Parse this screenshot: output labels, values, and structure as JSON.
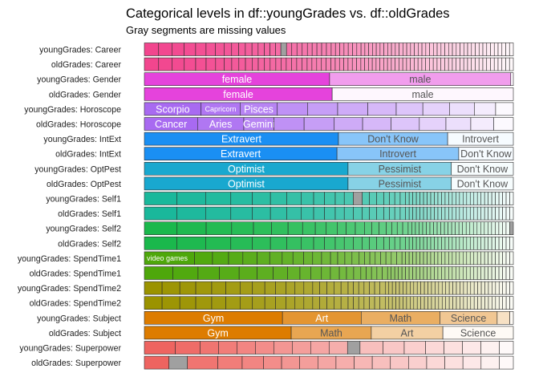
{
  "chart_data": {
    "type": "bar",
    "title": "Categorical levels in df::youngGrades vs. df::oldGrades",
    "subtitle": "Gray segments are missing values",
    "xlabel": "",
    "ylabel": "",
    "grid": false,
    "legend": "none",
    "missing_color": "#a0a0a0",
    "rows": [
      {
        "label": "youngGrades: Career",
        "color": "#f2468e",
        "segments": [
          0.0344,
          0.0321,
          0.0298,
          0.0275,
          0.0252,
          0.0229,
          0.0206,
          0.0183,
          0.0172,
          0.016,
          0.016,
          0.0149,
          0.0149,
          0.0137,
          0.0137,
          0.0126,
          {
            "value": 0.0137,
            "missing": true
          },
          0.0126,
          0.0126,
          0.0126,
          0.0126,
          0.0115,
          0.0115,
          0.0115,
          0.0115,
          0.0115,
          0.0103,
          0.0103,
          0.0103,
          0.0103,
          0.0103,
          0.0103,
          0.0103,
          0.0092,
          0.0092,
          0.0092,
          0.0092,
          0.0092,
          0.0092,
          0.0092,
          0.0092,
          0.0092,
          0.0092,
          0.0092,
          0.0092,
          0.0092,
          0.0092,
          0.0092,
          0.0092,
          0.0092,
          0.0092,
          0.0092,
          0.0092,
          0.0092,
          0.0092,
          0.0092,
          0.0092,
          0.0092,
          0.0092,
          0.0092,
          0.0092,
          0.0092,
          0.0092,
          0.0092,
          0.0092,
          0.0092,
          0.0092,
          0.0092,
          0.0092,
          0.0092,
          0.0092,
          0.0092,
          0.0092
        ]
      },
      {
        "label": "oldGrades: Career",
        "color": "#f2468e",
        "segments": [
          0.0344,
          0.0321,
          0.0298,
          0.0275,
          0.0252,
          0.0229,
          0.0206,
          0.0183,
          0.0172,
          0.016,
          0.016,
          0.0149,
          0.0149,
          0.0137,
          0.0137,
          0.0126,
          0.0126,
          0.0126,
          0.0126,
          0.0126,
          0.0126,
          0.0115,
          0.0115,
          0.0115,
          0.0115,
          0.0115,
          0.0103,
          0.0103,
          0.0103,
          0.0103,
          0.0103,
          0.0103,
          0.0103,
          0.0092,
          0.0092,
          0.0092,
          0.0092,
          0.0092,
          0.0092,
          0.0092,
          0.0092,
          0.0092,
          0.0092,
          0.0092,
          0.0092,
          0.0092,
          0.0092,
          0.0092,
          0.0092,
          0.0092,
          0.0092,
          0.0092,
          0.0092,
          0.0092,
          0.0092,
          0.0092,
          0.0092,
          0.0092,
          0.0092,
          0.0092,
          0.0092,
          0.0092,
          0.0092,
          0.0092,
          0.0092,
          0.0092,
          0.0092,
          0.0092,
          0.0092,
          0.0092,
          0.0092,
          0.0092,
          0.0092
        ]
      },
      {
        "label": "youngGrades: Gender",
        "color": "#e543dc",
        "segments": [
          {
            "value": 0.502,
            "text": "female"
          },
          {
            "value": 0.491,
            "text": "male"
          },
          0.007
        ]
      },
      {
        "label": "oldGrades: Gender",
        "color": "#e543dc",
        "segments": [
          {
            "value": 0.509,
            "text": "female"
          },
          {
            "value": 0.491,
            "text": "male"
          }
        ]
      },
      {
        "label": "youngGrades: Horoscope",
        "color": "#a86af1",
        "segments": [
          {
            "value": 0.163,
            "text": "Scorpio"
          },
          {
            "value": 0.112,
            "text": "Capricorn",
            "small": true
          },
          {
            "value": 0.107,
            "text": "Pisces"
          },
          0.0867,
          0.0867,
          0.0867,
          0.0816,
          0.0765,
          0.0765,
          0.0714,
          0.0612,
          0.0509
        ]
      },
      {
        "label": "oldGrades: Horoscope",
        "color": "#a86af1",
        "segments": [
          {
            "value": 0.153,
            "text": "Cancer"
          },
          {
            "value": 0.133,
            "text": "Aries"
          },
          {
            "value": 0.0867,
            "text": "Gemini"
          },
          0.0867,
          0.0867,
          0.0816,
          0.0816,
          0.0816,
          0.0765,
          0.0714,
          0.0663,
          0.0561
        ]
      },
      {
        "label": "youngGrades: IntExt",
        "color": "#1a8ff3",
        "segments": [
          {
            "value": 0.526,
            "text": "Extravert"
          },
          {
            "value": 0.296,
            "text": "Don't Know"
          },
          {
            "value": 0.178,
            "text": "Introvert"
          }
        ]
      },
      {
        "label": "oldGrades: IntExt",
        "color": "#1a8ff3",
        "segments": [
          {
            "value": 0.522,
            "text": "Extravert"
          },
          {
            "value": 0.33,
            "text": "Introvert"
          },
          {
            "value": 0.148,
            "text": "Don't Know"
          }
        ]
      },
      {
        "label": "youngGrades: OptPest",
        "color": "#19a8cf",
        "segments": [
          {
            "value": 0.552,
            "text": "Optimist"
          },
          {
            "value": 0.28,
            "text": "Pessimist"
          },
          {
            "value": 0.168,
            "text": "Don't Know"
          }
        ]
      },
      {
        "label": "oldGrades: OptPest",
        "color": "#19a8cf",
        "segments": [
          {
            "value": 0.552,
            "text": "Optimist"
          },
          {
            "value": 0.28,
            "text": "Pessimist"
          },
          {
            "value": 0.168,
            "text": "Don't Know"
          }
        ]
      },
      {
        "label": "youngGrades: Self1",
        "color": "#1ab89b",
        "segments": [
          0.101,
          0.0899,
          0.0787,
          0.0674,
          0.0562,
          0.0506,
          0.0449,
          0.0393,
          0.0337,
          0.0337,
          0.0281,
          0.0281,
          {
            "value": 0.0281,
            "missing": true
          },
          0.0225,
          0.0225,
          0.0225,
          0.0169,
          0.0169,
          0.0169,
          0.0169,
          0.0112,
          0.0112,
          0.0112,
          0.0112,
          0.0112,
          0.0112,
          0.0112,
          0.0112,
          0.0112,
          0.0112,
          0.0112,
          0.0112,
          0.0112,
          0.0112,
          0.0112,
          0.0112,
          0.0112,
          0.0112,
          0.0112,
          0.0112,
          0.0112,
          0.0112,
          0.0112,
          0.0112,
          0.0112,
          0.0112,
          0.0112,
          0.0112,
          0.0112,
          0.0112
        ]
      },
      {
        "label": "oldGrades: Self1",
        "color": "#1ab89b",
        "segments": [
          0.101,
          0.0899,
          0.0787,
          0.0674,
          0.0562,
          0.0506,
          0.0449,
          0.0393,
          0.0337,
          0.0337,
          0.0281,
          0.0281,
          0.0281,
          0.0225,
          0.0225,
          0.0225,
          0.0169,
          0.0169,
          0.0169,
          0.0169,
          0.0112,
          0.0112,
          0.0112,
          0.0112,
          0.0112,
          0.0112,
          0.0112,
          0.0112,
          0.0112,
          0.0112,
          0.0112,
          0.0112,
          0.0112,
          0.0112,
          0.0112,
          0.0112,
          0.0112,
          0.0112,
          0.0112,
          0.0112,
          0.0112,
          0.0112,
          0.0112,
          0.0112,
          0.0112,
          0.0112,
          0.0112,
          0.0112,
          0.0112,
          0.0112
        ]
      },
      {
        "label": "youngGrades: Self2",
        "color": "#1ab84c",
        "segments": [
          0.101,
          0.0899,
          0.0787,
          0.0674,
          0.0562,
          0.0506,
          0.0449,
          0.0393,
          0.0337,
          0.0337,
          0.0281,
          0.0281,
          0.0281,
          0.0225,
          0.0225,
          0.0225,
          0.0169,
          0.0169,
          0.0169,
          0.0169,
          0.0112,
          0.0112,
          0.0112,
          0.0112,
          0.0112,
          0.0112,
          0.0112,
          0.0112,
          0.0112,
          0.0112,
          0.0112,
          0.0112,
          0.0112,
          0.0112,
          0.0112,
          0.0112,
          0.0112,
          0.0112,
          0.0112,
          0.0112,
          0.0112,
          0.0112,
          0.0112,
          0.0112,
          0.0112,
          0.0112,
          0.0112,
          0.0112,
          {
            "value": 0.0112,
            "missing": true
          }
        ]
      },
      {
        "label": "oldGrades: Self2",
        "color": "#1ab84c",
        "segments": [
          0.101,
          0.0899,
          0.0787,
          0.0674,
          0.0562,
          0.0506,
          0.0449,
          0.0393,
          0.0337,
          0.0337,
          0.0281,
          0.0281,
          0.0281,
          0.0225,
          0.0225,
          0.0225,
          0.0169,
          0.0169,
          0.0169,
          0.0169,
          0.0112,
          0.0112,
          0.0112,
          0.0112,
          0.0112,
          0.0112,
          0.0112,
          0.0112,
          0.0112,
          0.0112,
          0.0112,
          0.0112,
          0.0112,
          0.0112,
          0.0112,
          0.0112,
          0.0112,
          0.0112,
          0.0112,
          0.0112,
          0.0112,
          0.0112,
          0.0112,
          0.0112,
          0.0112,
          0.0112,
          0.0112,
          0.0112,
          0.0112,
          0.0112
        ]
      },
      {
        "label": "youngGrades: SpendTime1",
        "color": "#4ea70b",
        "segments": [
          {
            "value": 0.151,
            "text": "video games",
            "small": true
          },
          0.0538,
          0.0484,
          0.043,
          0.043,
          0.0376,
          0.0376,
          0.0323,
          0.0323,
          0.0269,
          0.0269,
          0.0269,
          0.0215,
          0.0215,
          0.0215,
          0.0215,
          0.0161,
          0.0161,
          0.0161,
          0.0161,
          0.0161,
          0.0161,
          0.0161,
          0.0161,
          0.0108,
          0.0108,
          0.0108,
          0.0108,
          0.0108,
          0.0108,
          0.0108,
          0.0108,
          0.0108,
          0.0108,
          0.0108,
          0.0108,
          0.0108,
          0.0108,
          0.0108,
          0.0108,
          0.0108,
          0.0108,
          0.0108,
          0.0108,
          0.0108,
          0.0108,
          0.0108,
          0.0108,
          0.0108,
          0.0108,
          0.0108,
          0.0108,
          0.0108,
          0.0108,
          0.0108
        ]
      },
      {
        "label": "oldGrades: SpendTime1",
        "color": "#4ea70b",
        "segments": [
          0.086,
          0.0753,
          0.0645,
          0.0591,
          0.0538,
          0.0484,
          0.043,
          0.0376,
          0.0323,
          0.0323,
          0.0269,
          0.0269,
          0.0215,
          0.0215,
          0.0215,
          0.0161,
          0.0161,
          0.0161,
          0.0161,
          0.0161,
          0.0108,
          0.0108,
          0.0108,
          0.0108,
          0.0108,
          0.0108,
          0.0108,
          0.0108,
          0.0108,
          0.0108,
          0.0108,
          0.0108,
          0.0108,
          0.0108,
          0.0108,
          0.0108,
          0.0108,
          0.0108,
          0.0108,
          0.0108,
          0.0108,
          0.0108,
          0.0108,
          0.0108,
          0.0108,
          0.0108,
          0.0108,
          0.0108,
          0.0108,
          0.0108,
          0.0108,
          0.0108,
          0.0108,
          0.0108,
          0.0108
        ]
      },
      {
        "label": "youngGrades: SpendTime2",
        "color": "#9b9300",
        "segments": [
          0.0538,
          0.0538,
          0.0484,
          0.0484,
          0.043,
          0.043,
          0.0376,
          0.0376,
          0.0323,
          0.0323,
          0.0269,
          0.0269,
          0.0269,
          0.0215,
          0.0215,
          0.0215,
          0.0215,
          0.0215,
          0.0161,
          0.0161,
          0.0161,
          0.0161,
          0.0161,
          0.0161,
          0.0161,
          0.0108,
          0.0108,
          0.0108,
          0.0108,
          0.0108,
          0.0108,
          0.0108,
          0.0108,
          0.0108,
          0.0108,
          0.0108,
          0.0108,
          0.0108,
          0.0108,
          0.0108,
          0.0108,
          0.0108,
          0.0108,
          0.0108,
          0.0108,
          0.0108,
          0.0108,
          0.0108,
          0.0108,
          0.0108,
          0.0108,
          0.0108,
          0.0108,
          0.0108,
          0.0108,
          0.0108,
          0.0108,
          0.0108,
          0.0108,
          0.0108,
          0.0108
        ]
      },
      {
        "label": "oldGrades: SpendTime2",
        "color": "#9b9300",
        "segments": [
          0.0538,
          0.0538,
          0.0484,
          0.0484,
          0.043,
          0.043,
          0.0376,
          0.0376,
          0.0323,
          0.0323,
          0.0269,
          0.0269,
          0.0269,
          0.0215,
          0.0215,
          0.0215,
          0.0215,
          0.0215,
          0.0161,
          0.0161,
          0.0161,
          0.0161,
          0.0161,
          0.0161,
          0.0161,
          0.0108,
          0.0108,
          0.0108,
          0.0108,
          0.0108,
          0.0108,
          0.0108,
          0.0108,
          0.0108,
          0.0108,
          0.0108,
          0.0108,
          0.0108,
          0.0108,
          0.0108,
          0.0108,
          0.0108,
          0.0108,
          0.0108,
          0.0108,
          0.0108,
          0.0108,
          0.0108,
          0.0108,
          0.0108,
          0.0108,
          0.0108,
          0.0108,
          0.0108,
          0.0108,
          0.0108,
          0.0108,
          0.0108,
          0.0108,
          0.0108,
          0.0108
        ]
      },
      {
        "label": "youngGrades: Subject",
        "color": "#dd7c00",
        "segments": [
          {
            "value": 0.393,
            "text": "Gym"
          },
          {
            "value": 0.224,
            "text": "Art"
          },
          {
            "value": 0.224,
            "text": "Math"
          },
          {
            "value": 0.163,
            "text": "Science"
          },
          {
            "value": 0.036
          },
          {
            "value": 0.01
          }
        ]
      },
      {
        "label": "oldGrades: Subject",
        "color": "#dd7c00",
        "segments": [
          {
            "value": 0.398,
            "text": "Gym"
          },
          {
            "value": 0.217,
            "text": "Math"
          },
          {
            "value": 0.194,
            "text": "Art"
          },
          {
            "value": 0.191,
            "text": "Science"
          }
        ]
      },
      {
        "label": "youngGrades: Superpower",
        "color": "#ee6460",
        "segments": [
          0.087,
          0.07,
          0.052,
          0.052,
          0.052,
          0.052,
          0.052,
          0.052,
          0.052,
          0.052,
          {
            "value": 0.0353,
            "missing": true
          },
          0.0647,
          0.06,
          0.06,
          0.052,
          0.052,
          0.052,
          0.052,
          0.0397
        ]
      },
      {
        "label": "oldGrades: Superpower",
        "color": "#ee6460",
        "segments": [
          0.0706,
          {
            "value": 0.0529,
            "missing": true
          },
          0.087,
          0.07,
          0.061,
          0.052,
          0.052,
          0.052,
          0.052,
          0.052,
          0.052,
          0.052,
          0.052,
          0.052,
          0.052,
          0.052,
          0.052,
          0.052,
          0.0405
        ]
      }
    ]
  }
}
